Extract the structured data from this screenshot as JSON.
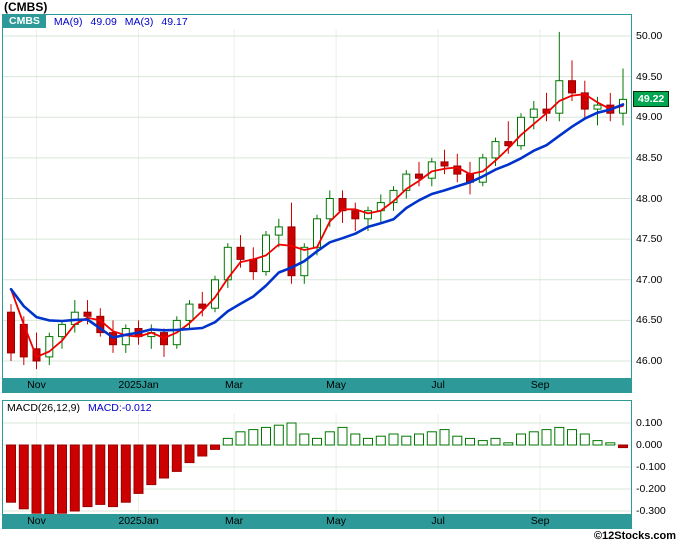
{
  "page": {
    "title": "(CMBS)",
    "watermark": "©12Stocks.com"
  },
  "colors": {
    "frame_teal": "#2E9999",
    "grid_h": "#d8e6d8",
    "grid_v": "#e9f1e9",
    "candle_up": "#007700",
    "candle_down": "#CC0000",
    "candle_down_border": "#990000",
    "ma3_red": "#EE0000",
    "ma9_blue": "#0033CC",
    "legend_blue": "#0000CC",
    "badge_green": "#00A651",
    "axis_text": "#000000"
  },
  "main_chart": {
    "legend": {
      "symbol": "CMBS",
      "ma9_label": "MA(9)",
      "ma9_value": "49.09",
      "ma3_label": "MA(3)",
      "ma3_value": "49.17"
    },
    "y_ticks": [
      "50.00",
      "49.50",
      "49.00",
      "48.50",
      "48.00",
      "47.50",
      "47.00",
      "46.50",
      "46.00"
    ],
    "last_price": "49.22"
  },
  "macd_chart": {
    "legend": {
      "label": "MACD(26,12,9)",
      "value_label": "MACD:-0.012"
    },
    "y_ticks": [
      "0.100",
      "0.000",
      "-0.100",
      "-0.200",
      "-0.300"
    ]
  },
  "chart_data": [
    {
      "type": "candlestick",
      "title": "CMBS weekly price with MA(9) and MA(3)",
      "x_tick_labels": [
        "Nov",
        "2025Jan",
        "Mar",
        "May",
        "Jul",
        "Sep"
      ],
      "x_tick_indices": [
        2,
        10,
        17.5,
        25.5,
        33.5,
        41.5
      ],
      "y_grid": [
        50.0,
        49.5,
        49.0,
        48.5,
        48.0,
        47.5,
        47.0,
        46.5,
        46.0
      ],
      "ylim": [
        45.78,
        50.26
      ],
      "last_close": 49.22,
      "ma9_last": 49.09,
      "ma3_last": 49.17,
      "prior_closes": [
        47.35,
        47.2
      ],
      "candles": [
        [
          46.6,
          46.7,
          46.0,
          46.1
        ],
        [
          46.45,
          46.55,
          45.95,
          46.05
        ],
        [
          46.15,
          46.35,
          45.9,
          46.0
        ],
        [
          46.05,
          46.35,
          45.95,
          46.3
        ],
        [
          46.3,
          46.5,
          46.15,
          46.45
        ],
        [
          46.45,
          46.75,
          46.35,
          46.6
        ],
        [
          46.6,
          46.75,
          46.45,
          46.55
        ],
        [
          46.55,
          46.65,
          46.3,
          46.35
        ],
        [
          46.35,
          46.5,
          46.1,
          46.2
        ],
        [
          46.2,
          46.45,
          46.1,
          46.4
        ],
        [
          46.4,
          46.5,
          46.2,
          46.3
        ],
        [
          46.3,
          46.45,
          46.15,
          46.35
        ],
        [
          46.35,
          46.4,
          46.05,
          46.2
        ],
        [
          46.2,
          46.55,
          46.15,
          46.5
        ],
        [
          46.5,
          46.75,
          46.4,
          46.7
        ],
        [
          46.7,
          46.85,
          46.55,
          46.65
        ],
        [
          46.65,
          47.05,
          46.6,
          47.0
        ],
        [
          47.0,
          47.45,
          46.9,
          47.4
        ],
        [
          47.4,
          47.55,
          47.15,
          47.25
        ],
        [
          47.25,
          47.4,
          47.0,
          47.1
        ],
        [
          47.1,
          47.6,
          47.05,
          47.55
        ],
        [
          47.55,
          47.75,
          47.4,
          47.65
        ],
        [
          47.65,
          47.95,
          46.95,
          47.05
        ],
        [
          47.05,
          47.45,
          46.95,
          47.4
        ],
        [
          47.4,
          47.8,
          47.3,
          47.75
        ],
        [
          47.75,
          48.1,
          47.65,
          48.0
        ],
        [
          48.0,
          48.1,
          47.7,
          47.85
        ],
        [
          47.85,
          47.95,
          47.6,
          47.75
        ],
        [
          47.75,
          47.9,
          47.6,
          47.85
        ],
        [
          47.85,
          48.05,
          47.7,
          47.95
        ],
        [
          47.95,
          48.15,
          47.85,
          48.1
        ],
        [
          48.1,
          48.35,
          48.0,
          48.3
        ],
        [
          48.3,
          48.45,
          48.15,
          48.25
        ],
        [
          48.25,
          48.5,
          48.15,
          48.45
        ],
        [
          48.45,
          48.6,
          48.3,
          48.4
        ],
        [
          48.4,
          48.55,
          48.2,
          48.3
        ],
        [
          48.3,
          48.45,
          48.05,
          48.2
        ],
        [
          48.2,
          48.55,
          48.15,
          48.5
        ],
        [
          48.5,
          48.75,
          48.4,
          48.7
        ],
        [
          48.7,
          48.95,
          48.55,
          48.65
        ],
        [
          48.65,
          49.05,
          48.6,
          49.0
        ],
        [
          49.0,
          49.2,
          48.85,
          49.1
        ],
        [
          49.1,
          49.3,
          48.95,
          49.05
        ],
        [
          49.05,
          50.05,
          48.95,
          49.45
        ],
        [
          49.45,
          49.7,
          49.2,
          49.3
        ],
        [
          49.3,
          49.45,
          49.0,
          49.1
        ],
        [
          49.1,
          49.25,
          48.9,
          49.15
        ],
        [
          49.15,
          49.3,
          48.95,
          49.05
        ],
        [
          49.05,
          49.6,
          48.9,
          49.22
        ]
      ]
    },
    {
      "type": "bar",
      "title": "MACD(26,12,9)",
      "last_value": -0.012,
      "y_grid": [
        0.1,
        0.0,
        -0.1,
        -0.2,
        -0.3
      ],
      "ylim": [
        -0.33,
        0.13
      ],
      "values": [
        -0.26,
        -0.29,
        -0.31,
        -0.32,
        -0.31,
        -0.3,
        -0.28,
        -0.27,
        -0.28,
        -0.26,
        -0.22,
        -0.18,
        -0.15,
        -0.12,
        -0.08,
        -0.05,
        -0.02,
        0.03,
        0.06,
        0.07,
        0.08,
        0.09,
        0.1,
        0.05,
        0.03,
        0.06,
        0.08,
        0.05,
        0.03,
        0.04,
        0.05,
        0.04,
        0.05,
        0.06,
        0.07,
        0.04,
        0.03,
        0.02,
        0.03,
        0.01,
        0.05,
        0.06,
        0.07,
        0.08,
        0.07,
        0.05,
        0.02,
        0.01,
        -0.012
      ]
    }
  ]
}
